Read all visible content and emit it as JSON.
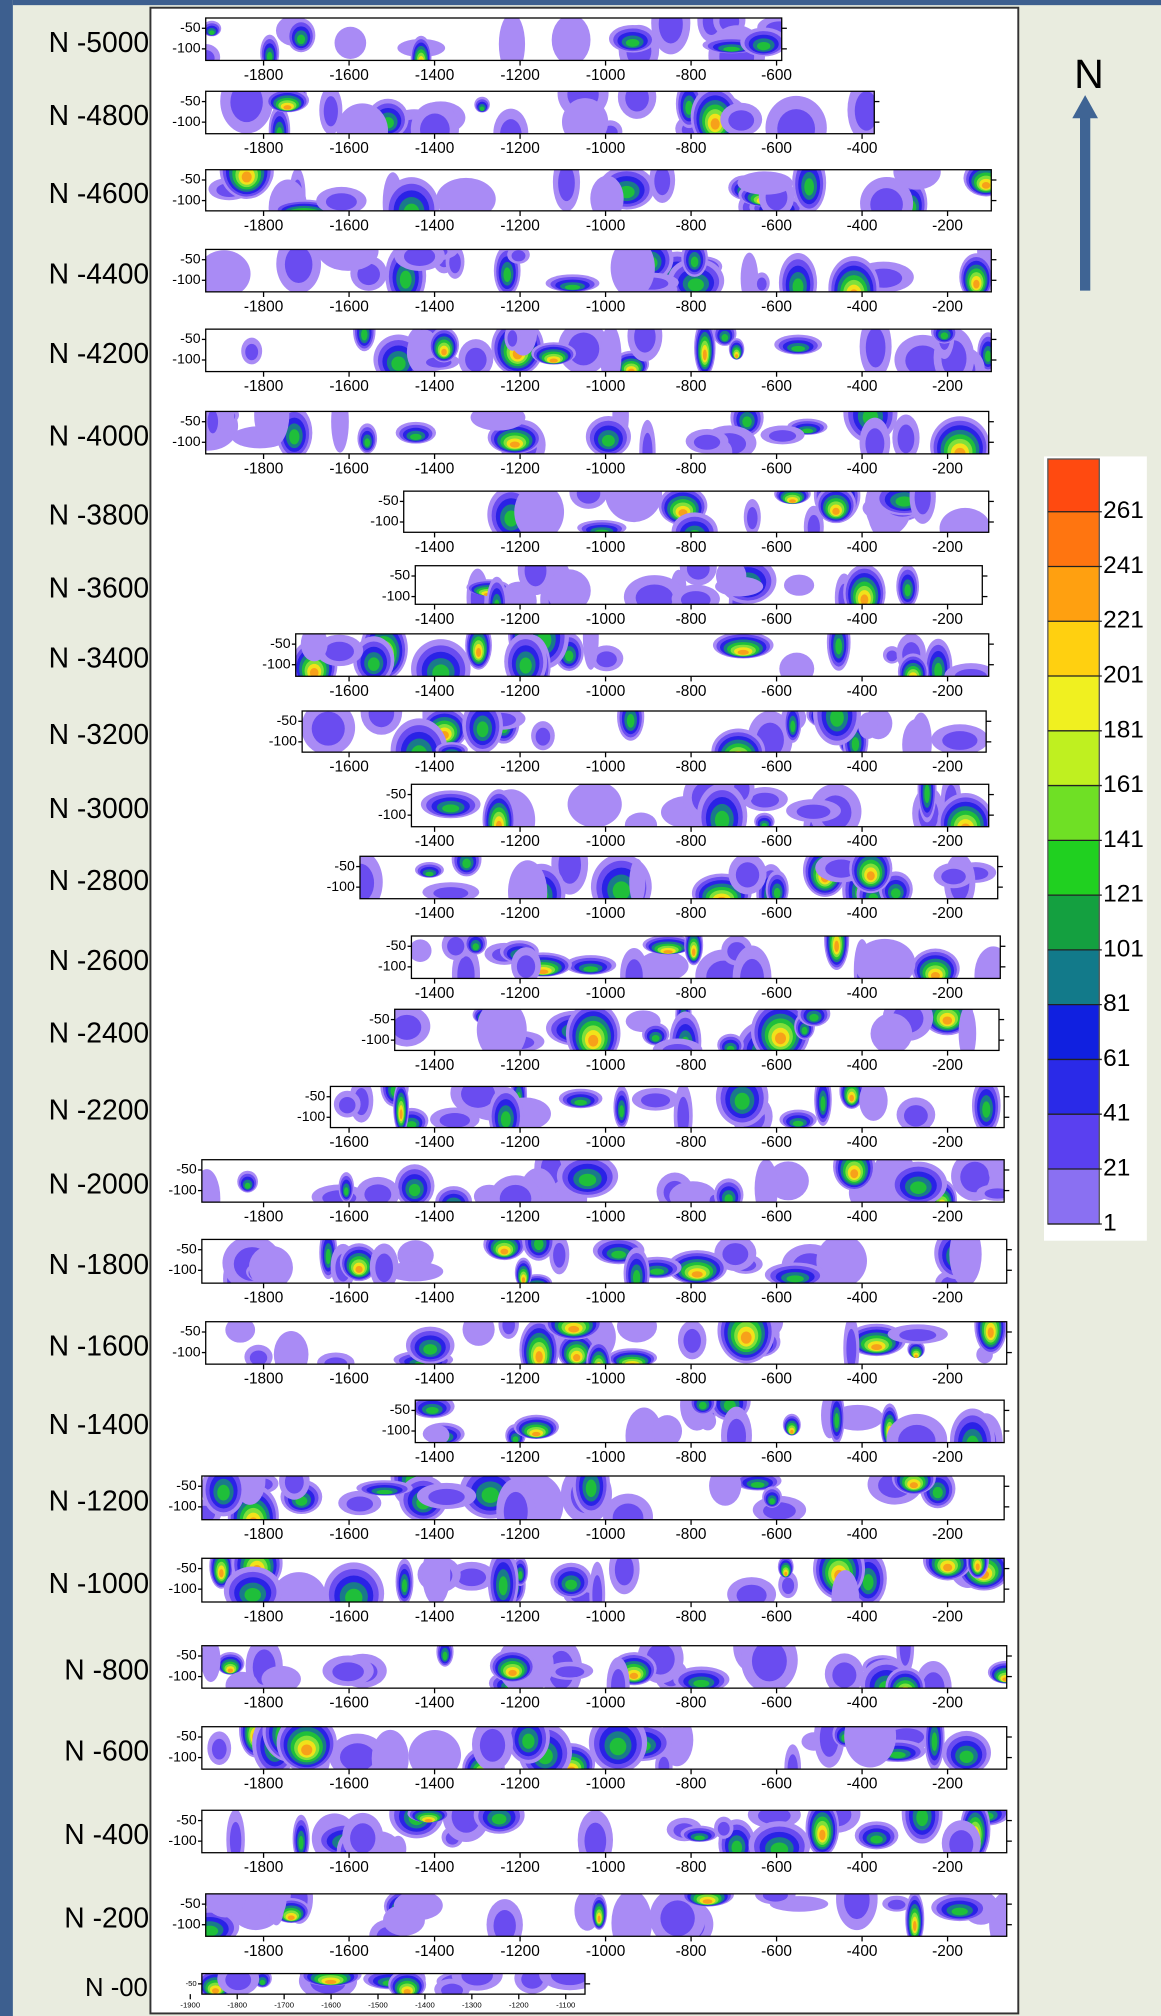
{
  "north": "N",
  "colorbar": {
    "labels": [
      261,
      241,
      221,
      201,
      181,
      161,
      141,
      121,
      101,
      81,
      61,
      41,
      21,
      1
    ]
  },
  "strips": [
    {
      "label": "N -5000",
      "yticks": [
        -50,
        -100
      ],
      "xticks": [
        -1800,
        -1600,
        -1400,
        -1200,
        -1000,
        -800,
        -600
      ]
    },
    {
      "label": "N -4800",
      "yticks": [
        -50,
        -100
      ],
      "xticks": [
        -1800,
        -1600,
        -1400,
        -1200,
        -1000,
        -800,
        -600,
        -400
      ]
    },
    {
      "label": "N -4600",
      "yticks": [
        -50,
        -100
      ],
      "xticks": [
        -1800,
        -1600,
        -1400,
        -1200,
        -1000,
        -800,
        -600,
        -400,
        -200
      ]
    },
    {
      "label": "N -4400",
      "yticks": [
        -50,
        -100
      ],
      "xticks": [
        -1800,
        -1600,
        -1400,
        -1200,
        -1000,
        -800,
        -600,
        -400,
        -200
      ]
    },
    {
      "label": "N -4200",
      "yticks": [
        -50,
        -100
      ],
      "xticks": [
        -1800,
        -1600,
        -1400,
        -1200,
        -1000,
        -800,
        -600,
        -400,
        -200
      ]
    },
    {
      "label": "N -4000",
      "yticks": [
        -50,
        -100
      ],
      "xticks": [
        -1800,
        -1600,
        -1400,
        -1200,
        -1000,
        -800,
        -600,
        -400,
        -200
      ]
    },
    {
      "label": "N -3800",
      "yticks": [
        -50,
        -100
      ],
      "xticks": [
        -1400,
        -1200,
        -1000,
        -800,
        -600,
        -400,
        -200
      ]
    },
    {
      "label": "N -3600",
      "yticks": [
        -50,
        -100
      ],
      "xticks": [
        -1400,
        -1200,
        -1000,
        -800,
        -600,
        -400,
        -200
      ]
    },
    {
      "label": "N -3400",
      "yticks": [
        -50,
        -100
      ],
      "xticks": [
        -1600,
        -1400,
        -1200,
        -1000,
        -800,
        -600,
        -400,
        -200
      ]
    },
    {
      "label": "N -3200",
      "yticks": [
        -50,
        -100
      ],
      "xticks": [
        -1600,
        -1400,
        -1200,
        -1000,
        -800,
        -600,
        -400,
        -200
      ]
    },
    {
      "label": "N -3000",
      "yticks": [
        -50,
        -100
      ],
      "xticks": [
        -1400,
        -1200,
        -1000,
        -800,
        -600,
        -400,
        -200
      ]
    },
    {
      "label": "N -2800",
      "yticks": [
        -50,
        -100
      ],
      "xticks": [
        -1400,
        -1200,
        -1000,
        -800,
        -600,
        -400,
        -200
      ]
    },
    {
      "label": "N -2600",
      "yticks": [
        -50,
        -100
      ],
      "xticks": [
        -1400,
        -1200,
        -1000,
        -800,
        -600,
        -400,
        -200
      ]
    },
    {
      "label": "N -2400",
      "yticks": [
        -50,
        -100
      ],
      "xticks": [
        -1400,
        -1200,
        -1000,
        -800,
        -600,
        -400,
        -200
      ]
    },
    {
      "label": "N -2200",
      "yticks": [
        -50,
        -100
      ],
      "xticks": [
        -1600,
        -1400,
        -1200,
        -1000,
        -800,
        -600,
        -400,
        -200
      ]
    },
    {
      "label": "N -2000",
      "yticks": [
        -50,
        -100
      ],
      "xticks": [
        -1800,
        -1600,
        -1400,
        -1200,
        -1000,
        -800,
        -600,
        -400,
        -200
      ]
    },
    {
      "label": "N -1800",
      "yticks": [
        -50,
        -100
      ],
      "xticks": [
        -1800,
        -1600,
        -1400,
        -1200,
        -1000,
        -800,
        -600,
        -400,
        -200
      ]
    },
    {
      "label": "N -1600",
      "yticks": [
        -50,
        -100
      ],
      "xticks": [
        -1800,
        -1600,
        -1400,
        -1200,
        -1000,
        -800,
        -600,
        -400,
        -200
      ]
    },
    {
      "label": "N -1400",
      "yticks": [
        -50,
        -100
      ],
      "xticks": [
        -1400,
        -1200,
        -1000,
        -800,
        -600,
        -400,
        -200
      ]
    },
    {
      "label": "N -1200",
      "yticks": [
        -50,
        -100
      ],
      "xticks": [
        -1800,
        -1600,
        -1400,
        -1200,
        -1000,
        -800,
        -600,
        -400,
        -200
      ]
    },
    {
      "label": "N -1000",
      "yticks": [
        -50,
        -100
      ],
      "xticks": [
        -1800,
        -1600,
        -1400,
        -1200,
        -1000,
        -800,
        -600,
        -400,
        -200
      ]
    },
    {
      "label": "N -800",
      "yticks": [
        -50,
        -100
      ],
      "xticks": [
        -1800,
        -1600,
        -1400,
        -1200,
        -1000,
        -800,
        -600,
        -400,
        -200
      ]
    },
    {
      "label": "N -600",
      "yticks": [
        -50,
        -100
      ],
      "xticks": [
        -1800,
        -1600,
        -1400,
        -1200,
        -1000,
        -800,
        -600,
        -400,
        -200
      ]
    },
    {
      "label": "N -400",
      "yticks": [
        -50,
        -100
      ],
      "xticks": [
        -1800,
        -1600,
        -1400,
        -1200,
        -1000,
        -800,
        -600,
        -400,
        -200
      ]
    },
    {
      "label": "N -200",
      "yticks": [
        -50,
        -100
      ],
      "xticks": [
        -1800,
        -1600,
        -1400,
        -1200,
        -1000,
        -800,
        -600,
        -400,
        -200
      ]
    },
    {
      "label": "N -00",
      "yticks": [
        -50
      ],
      "xticks": [
        -1900,
        -1800,
        -1700,
        -1600,
        -1500,
        -1400,
        -1300,
        -1200,
        -1100
      ]
    }
  ]
}
